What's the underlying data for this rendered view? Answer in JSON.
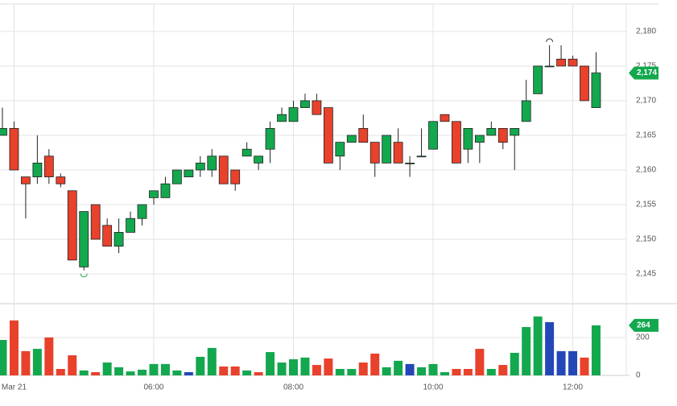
{
  "chart_data": {
    "type": "candlestick",
    "categories": [
      null,
      "Mar 21",
      null,
      null,
      null,
      null,
      null,
      null,
      null,
      null,
      null,
      null,
      null,
      "06:00",
      null,
      null,
      null,
      null,
      null,
      null,
      null,
      null,
      null,
      null,
      null,
      "08:00",
      null,
      null,
      null,
      null,
      null,
      null,
      null,
      null,
      null,
      null,
      null,
      "10:00",
      null,
      null,
      null,
      null,
      null,
      null,
      null,
      null,
      null,
      null,
      null,
      "12:00",
      null,
      null
    ],
    "open": [
      2165,
      2166,
      2159,
      2159,
      2162,
      2159,
      2157,
      2146,
      2155,
      2152,
      2149,
      2151,
      2153,
      2156,
      2156,
      2158,
      2159,
      2160,
      2160,
      2162,
      2160,
      2162,
      2161,
      2163,
      2167,
      2167,
      2169,
      2170,
      2169,
      2162,
      2164,
      2166,
      2164,
      2161,
      2164,
      2161,
      2162,
      2163,
      2168,
      2167,
      2163,
      2164,
      2165,
      2166,
      2165,
      2167,
      2171,
      2175,
      2176,
      2176,
      2175,
      2169
    ],
    "high": [
      2169,
      2167,
      2159,
      2165,
      2163,
      2159.5,
      2157,
      2154,
      2155,
      2153,
      2153,
      2154,
      2155,
      2157,
      2159,
      2160,
      2160,
      2162,
      2163,
      2162,
      2160,
      2164,
      2162,
      2167,
      2169,
      2170,
      2171,
      2171,
      2169,
      2164,
      2165,
      2168,
      2164,
      2165,
      2166,
      2162,
      2166,
      2167,
      2168,
      2167,
      2166,
      2165,
      2167,
      2166,
      2166,
      2173,
      2175,
      2178,
      2178,
      2176.5,
      2175,
      2177
    ],
    "low": [
      2165,
      2160,
      2153,
      2158,
      2158,
      2157.5,
      2147,
      2145.5,
      2150,
      2149,
      2148,
      2151,
      2152,
      2155,
      2156,
      2158,
      2159,
      2159,
      2159,
      2158,
      2157,
      2162,
      2160,
      2161,
      2167,
      2167,
      2169,
      2168,
      2161,
      2160,
      2164,
      2164,
      2159,
      2161,
      2161,
      2159,
      2162,
      2163,
      2167,
      2161,
      2161,
      2161,
      2165,
      2163,
      2160,
      2167,
      2171,
      2175,
      2175,
      2175,
      2170,
      2169
    ],
    "close": [
      2166,
      2160,
      2158,
      2161,
      2159,
      2158,
      2147,
      2154,
      2150,
      2149,
      2151,
      2153,
      2155,
      2157,
      2158,
      2160,
      2160,
      2161,
      2162,
      2158,
      2158,
      2163,
      2162,
      2166,
      2168,
      2169,
      2170,
      2168,
      2161,
      2164,
      2165,
      2164,
      2161,
      2165,
      2161,
      2161,
      2162,
      2167,
      2167,
      2161,
      2166,
      2165,
      2166,
      2164,
      2166,
      2170,
      2175,
      2175,
      2175,
      2175,
      2170,
      2174
    ],
    "up_color": "#13a84e",
    "down_color": "#e8412c",
    "ylim": [
      2140.7,
      2183.95
    ],
    "yticks": [
      {
        "value": 2145,
        "label": "2,145"
      },
      {
        "value": 2150,
        "label": "2,150"
      },
      {
        "value": 2155,
        "label": "2,155"
      },
      {
        "value": 2160,
        "label": "2,160"
      },
      {
        "value": 2165,
        "label": "2,165"
      },
      {
        "value": 2170,
        "label": "2,170"
      },
      {
        "value": 2175,
        "label": "2,175"
      },
      {
        "value": 2180,
        "label": "2,180"
      }
    ],
    "last_price": {
      "value": 2174,
      "label": "2,174"
    },
    "grid": true,
    "volume": {
      "values": [
        187,
        290,
        128,
        140,
        200,
        34,
        106,
        26,
        17,
        68,
        43,
        21,
        30,
        60,
        60,
        26,
        17,
        98,
        145,
        47,
        47,
        26,
        17,
        123,
        68,
        85,
        94,
        55,
        89,
        34,
        34,
        68,
        115,
        43,
        77,
        60,
        43,
        60,
        17,
        34,
        34,
        140,
        34,
        55,
        119,
        255,
        311,
        281,
        128,
        128,
        94,
        264
      ],
      "colors": [
        "#13a84e",
        "#e8412c",
        "#e8412c",
        "#13a84e",
        "#e8412c",
        "#e8412c",
        "#e8412c",
        "#13a84e",
        "#e8412c",
        "#13a84e",
        "#13a84e",
        "#13a84e",
        "#13a84e",
        "#13a84e",
        "#13a84e",
        "#13a84e",
        "#2447b8",
        "#13a84e",
        "#13a84e",
        "#e8412c",
        "#e8412c",
        "#13a84e",
        "#e8412c",
        "#13a84e",
        "#13a84e",
        "#13a84e",
        "#13a84e",
        "#e8412c",
        "#e8412c",
        "#13a84e",
        "#13a84e",
        "#e8412c",
        "#e8412c",
        "#13a84e",
        "#13a84e",
        "#2447b8",
        "#13a84e",
        "#13a84e",
        "#13a84e",
        "#e8412c",
        "#e8412c",
        "#e8412c",
        "#13a84e",
        "#e8412c",
        "#13a84e",
        "#13a84e",
        "#13a84e",
        "#2447b8",
        "#2447b8",
        "#2447b8",
        "#e8412c",
        "#13a84e"
      ],
      "ylim": [
        0,
        374
      ],
      "yticks": [
        0,
        200
      ],
      "last_volume": {
        "value": 264,
        "label": "264"
      }
    }
  }
}
